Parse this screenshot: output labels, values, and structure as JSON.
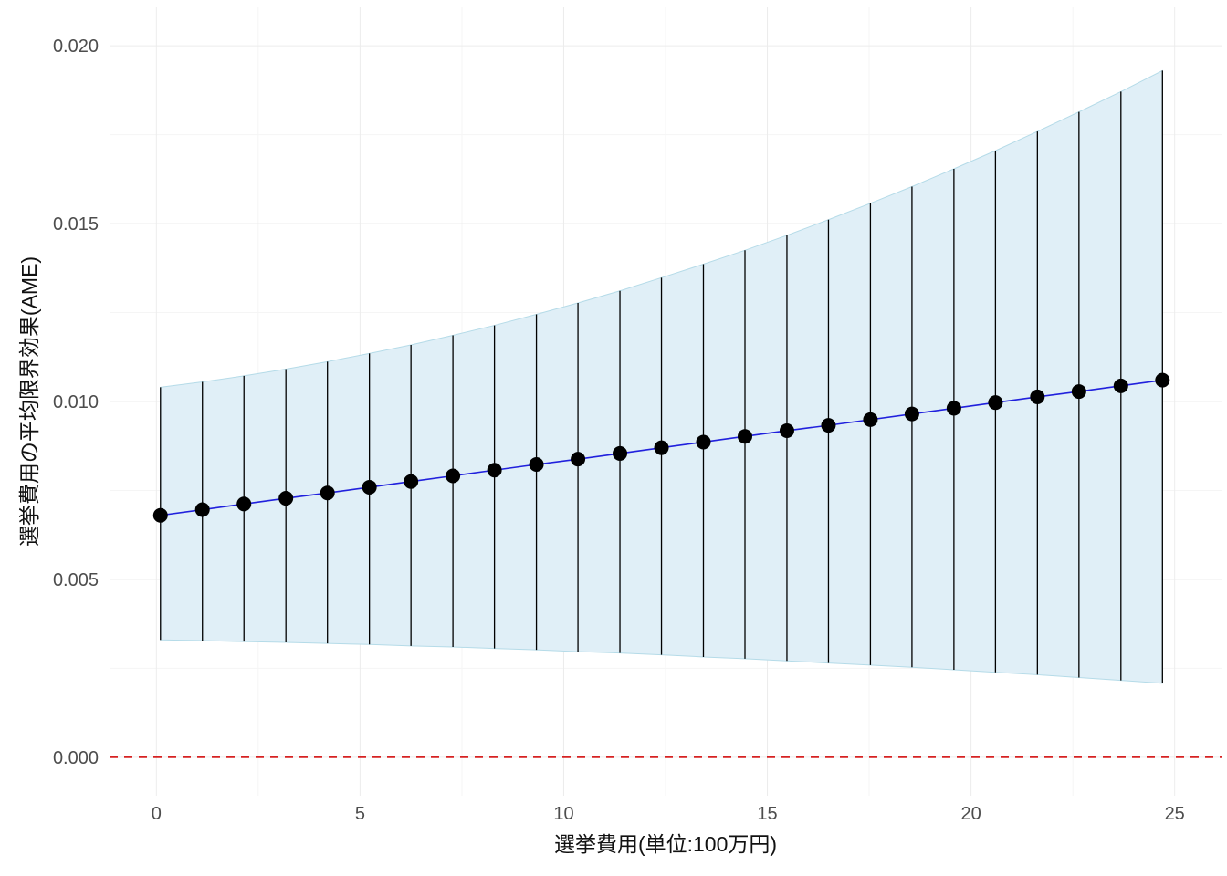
{
  "chart_data": {
    "type": "line",
    "title": "",
    "xlabel": "選挙費用(単位:100万円)",
    "ylabel": "選挙費用の平均限界効果(AME)",
    "xlim": [
      -1.15,
      26.15
    ],
    "ylim": [
      -0.00108,
      0.02108
    ],
    "grid": "on",
    "legend": "none",
    "x_ticks": [
      {
        "label": "0",
        "value": 0
      },
      {
        "label": "5",
        "value": 5
      },
      {
        "label": "10",
        "value": 10
      },
      {
        "label": "15",
        "value": 15
      },
      {
        "label": "20",
        "value": 20
      },
      {
        "label": "25",
        "value": 25
      }
    ],
    "y_ticks": [
      {
        "label": "0.000",
        "value": 0.0
      },
      {
        "label": "0.005",
        "value": 0.005
      },
      {
        "label": "0.010",
        "value": 0.01
      },
      {
        "label": "0.015",
        "value": 0.015
      },
      {
        "label": "0.020",
        "value": 0.02
      }
    ],
    "reference_line": {
      "y": 0,
      "style": "dashed",
      "color": "#d62222"
    },
    "series": [
      {
        "name": "AME",
        "x": [
          0.1,
          1.13,
          2.15,
          3.18,
          4.2,
          5.23,
          6.25,
          7.28,
          8.3,
          9.33,
          10.35,
          11.38,
          12.4,
          13.43,
          14.45,
          15.48,
          16.5,
          17.53,
          18.55,
          19.58,
          20.6,
          21.63,
          22.65,
          23.68,
          24.7
        ],
        "y": [
          0.0068,
          0.00696,
          0.00712,
          0.00728,
          0.00743,
          0.00759,
          0.00775,
          0.00791,
          0.00807,
          0.00823,
          0.00838,
          0.00854,
          0.0087,
          0.00886,
          0.00902,
          0.00918,
          0.00933,
          0.00949,
          0.00965,
          0.00981,
          0.00997,
          0.01013,
          0.01028,
          0.01044,
          0.0106
        ],
        "upper": [
          0.0104,
          0.01055,
          0.01072,
          0.01091,
          0.01112,
          0.01135,
          0.01159,
          0.01186,
          0.01214,
          0.01245,
          0.01277,
          0.01311,
          0.01348,
          0.01386,
          0.01425,
          0.01467,
          0.01511,
          0.01557,
          0.01604,
          0.01654,
          0.01705,
          0.01759,
          0.01814,
          0.01871,
          0.0193
        ],
        "lower": [
          0.0033,
          0.00328,
          0.00325,
          0.00323,
          0.0032,
          0.00317,
          0.00313,
          0.0031,
          0.00306,
          0.00302,
          0.00297,
          0.00293,
          0.00288,
          0.00282,
          0.00277,
          0.00271,
          0.00265,
          0.00259,
          0.00253,
          0.00246,
          0.00239,
          0.00232,
          0.00224,
          0.00216,
          0.00208
        ]
      }
    ],
    "colors": {
      "ribbon_fill": "#e0eff7",
      "ribbon_edge": "#b5dbe8",
      "line": "#2020dd",
      "point": "#000000",
      "errorbar": "#000000",
      "grid_major": "#ececec",
      "grid_minor": "#f5f5f5",
      "tick_text": "#4d4d4d"
    }
  }
}
